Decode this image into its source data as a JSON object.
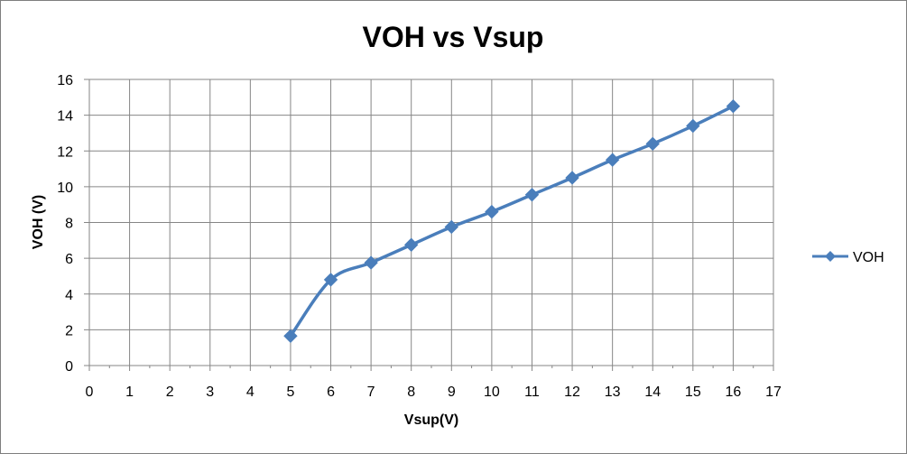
{
  "chart_data": {
    "type": "line",
    "title": "VOH vs Vsup",
    "xlabel": "Vsup(V)",
    "ylabel": "VOH  (V)",
    "xlim": [
      0,
      17
    ],
    "ylim": [
      0,
      16
    ],
    "x_ticks": [
      0,
      1,
      2,
      3,
      4,
      5,
      6,
      7,
      8,
      9,
      10,
      11,
      12,
      13,
      14,
      15,
      16,
      17
    ],
    "y_ticks": [
      0,
      2,
      4,
      6,
      8,
      10,
      12,
      14,
      16
    ],
    "grid": true,
    "legend_position": "right",
    "smooth": true,
    "marker": "diamond",
    "series": [
      {
        "name": "VOH",
        "color": "#4a7ebb",
        "points": [
          {
            "x": 5,
            "y": 1.65
          },
          {
            "x": 6,
            "y": 4.8
          },
          {
            "x": 7,
            "y": 5.75
          },
          {
            "x": 8,
            "y": 6.75
          },
          {
            "x": 9,
            "y": 7.75
          },
          {
            "x": 10,
            "y": 8.6
          },
          {
            "x": 11,
            "y": 9.55
          },
          {
            "x": 12,
            "y": 10.5
          },
          {
            "x": 13,
            "y": 11.5
          },
          {
            "x": 14,
            "y": 12.4
          },
          {
            "x": 15,
            "y": 13.4
          },
          {
            "x": 16,
            "y": 14.5
          }
        ]
      }
    ]
  }
}
